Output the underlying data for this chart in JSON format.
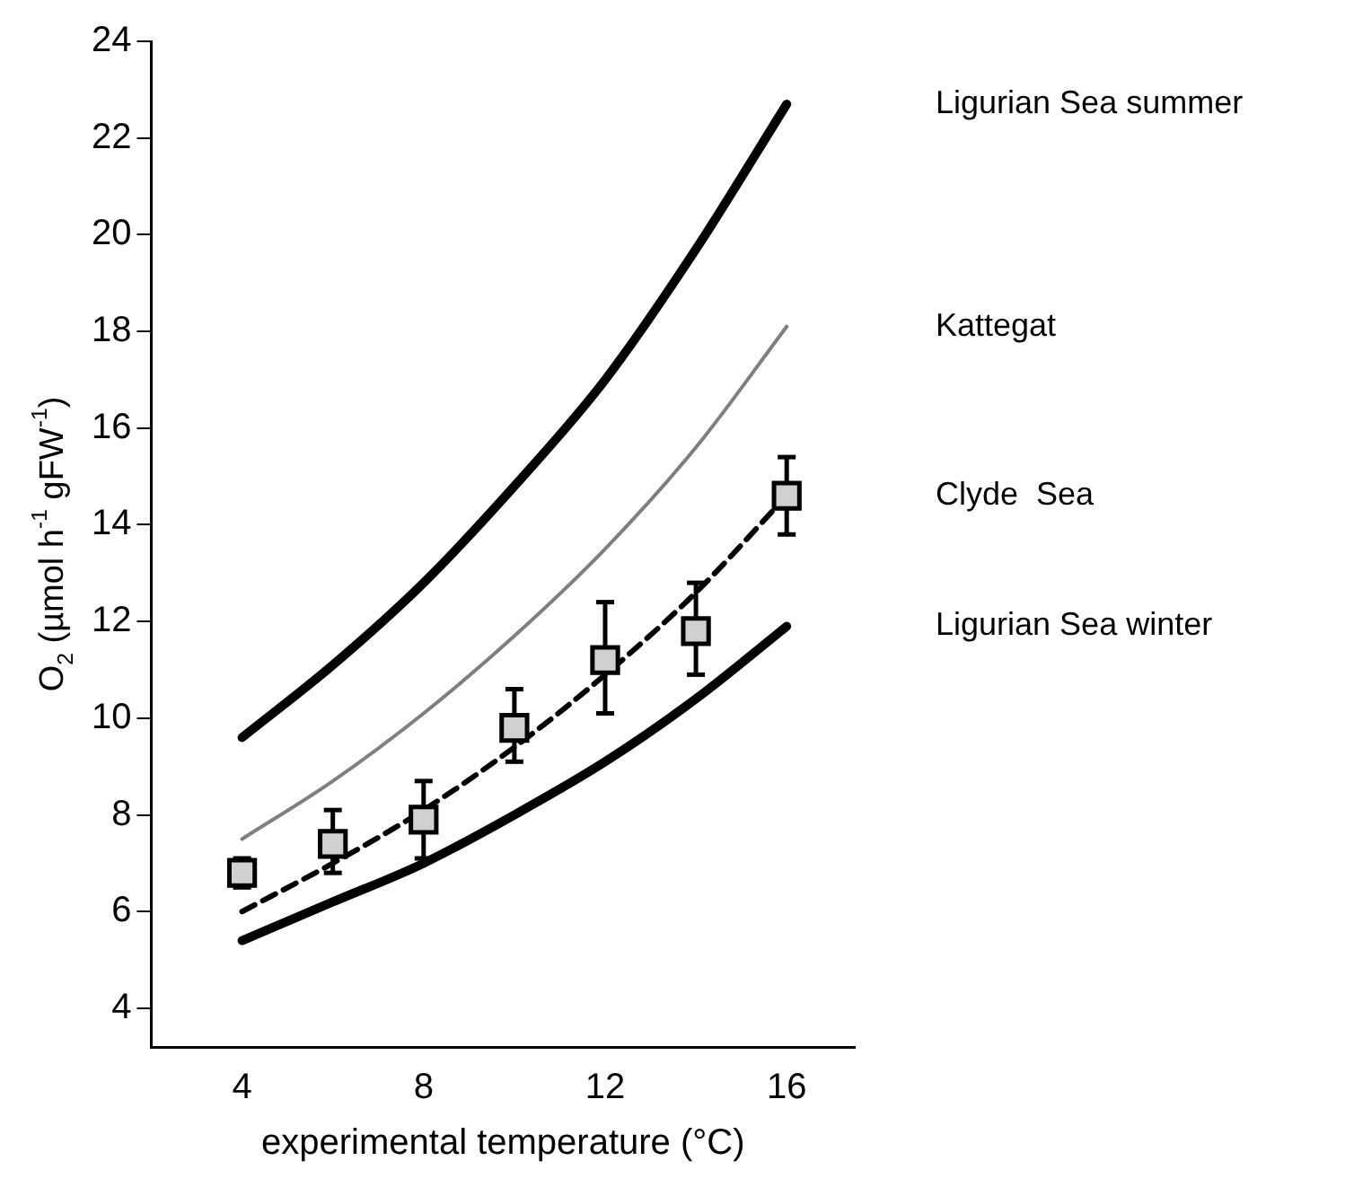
{
  "chart_data": {
    "type": "line",
    "xlabel": "experimental temperature (°C)",
    "ylabel": "O$_{2}$ (µmol h$^{-1}$ gFW$^{-1}$)",
    "x": [
      4,
      6,
      8,
      10,
      12,
      14,
      16
    ],
    "series": [
      {
        "name": "Ligurian Sea summer",
        "color": "#000000",
        "line_style": "solid",
        "marker": "none",
        "values": [
          9.6,
          11.1,
          12.8,
          14.8,
          17.0,
          19.7,
          22.7
        ]
      },
      {
        "name": "Kattegat",
        "color": "#7f7f7f",
        "line_style": "solid",
        "marker": "none",
        "values": [
          7.5,
          8.7,
          10.1,
          11.7,
          13.5,
          15.6,
          18.1
        ]
      },
      {
        "name": "Clyde  Sea",
        "type": "scatter",
        "color": "#000000",
        "marker": "square",
        "values": [
          6.8,
          7.4,
          7.9,
          9.8,
          11.2,
          11.8,
          14.6
        ],
        "errors": [
          [
            6.5,
            7.1
          ],
          [
            6.8,
            8.1
          ],
          [
            7.1,
            8.7
          ],
          [
            9.1,
            10.6
          ],
          [
            10.1,
            12.4
          ],
          [
            10.9,
            12.8
          ],
          [
            13.8,
            15.4
          ]
        ]
      },
      {
        "color": "#000000",
        "line_style": "dashed",
        "marker": "none",
        "values": [
          6.0,
          7.0,
          8.1,
          9.4,
          10.9,
          12.6,
          14.6
        ]
      },
      {
        "name": "Ligurian Sea winter",
        "color": "#000000",
        "line_style": "solid",
        "marker": "none",
        "values": [
          5.4,
          6.2,
          7.0,
          8.0,
          9.1,
          10.4,
          11.9
        ]
      }
    ],
    "xlim": [
      2,
      17.5
    ],
    "xticks": [
      4,
      8,
      12,
      16
    ],
    "ylim": [
      3.2,
      24
    ],
    "yticks": [
      4,
      6,
      8,
      10,
      12,
      14,
      16,
      18,
      20,
      22,
      24
    ],
    "grid": false,
    "legend": false
  }
}
